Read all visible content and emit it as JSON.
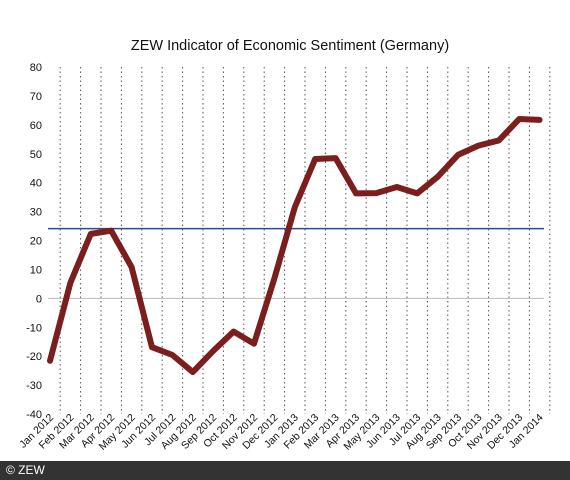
{
  "chart_data": {
    "type": "line",
    "title": "ZEW Indicator of Economic Sentiment (Germany)",
    "categories": [
      "Jan 2012",
      "Feb 2012",
      "Mar 2012",
      "Apr 2012",
      "May 2012",
      "Jun 2012",
      "Jul 2012",
      "Aug 2012",
      "Sep 2012",
      "Oct 2012",
      "Nov 2012",
      "Dec 2012",
      "Jan 2013",
      "Feb 2013",
      "Mar 2013",
      "Apr 2013",
      "May 2013",
      "Jun 2013",
      "Jul 2013",
      "Aug 2013",
      "Sep 2013",
      "Oct 2013",
      "Nov 2013",
      "Dec 2013",
      "Jan 2014"
    ],
    "series": [
      {
        "values": [
          -21.6,
          5.4,
          22.3,
          23.4,
          10.8,
          -16.9,
          -19.6,
          -25.5,
          -18.2,
          -11.5,
          -15.7,
          6.9,
          31.5,
          48.2,
          48.5,
          36.3,
          36.4,
          38.5,
          36.3,
          42.0,
          49.6,
          52.8,
          54.6,
          62.0,
          61.7
        ]
      }
    ],
    "reference_line": {
      "value": 24.1,
      "color": "#2f4a8f"
    },
    "ylim": [
      -40,
      80
    ],
    "yticks": [
      -40,
      -30,
      -20,
      -10,
      0,
      10,
      20,
      30,
      40,
      50,
      60,
      70,
      80
    ],
    "line_color": "#7a1e1e",
    "zero_line_color": "#bbbbbb",
    "grid": "vertical dotted"
  },
  "footer": {
    "text": "© ZEW"
  }
}
